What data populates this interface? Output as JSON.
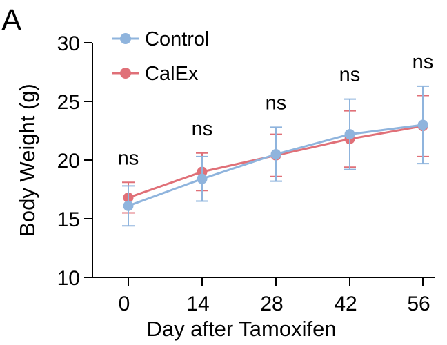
{
  "panel_label": "A",
  "chart_data": {
    "type": "line",
    "title": "",
    "xlabel": "Day after Tamoxifen",
    "ylabel": "Body Weight (g)",
    "x": [
      0,
      14,
      28,
      42,
      56
    ],
    "x_tick_labels": [
      "0",
      "14",
      "28",
      "42",
      "56"
    ],
    "ylim": [
      10,
      30
    ],
    "y_ticks": [
      10,
      15,
      20,
      25,
      30
    ],
    "grid": false,
    "legend_position": "top-left",
    "series": [
      {
        "name": "Control",
        "color": "#8fb4dd",
        "values": [
          16.1,
          18.4,
          20.5,
          22.2,
          23.0
        ],
        "error": [
          1.7,
          1.9,
          2.3,
          3.0,
          3.3
        ]
      },
      {
        "name": "CalEx",
        "color": "#e07078",
        "values": [
          16.8,
          19.0,
          20.4,
          21.8,
          22.9
        ],
        "error": [
          1.3,
          1.6,
          1.8,
          2.4,
          2.6
        ]
      }
    ],
    "annotations": [
      "ns",
      "ns",
      "ns",
      "ns",
      "ns"
    ]
  }
}
